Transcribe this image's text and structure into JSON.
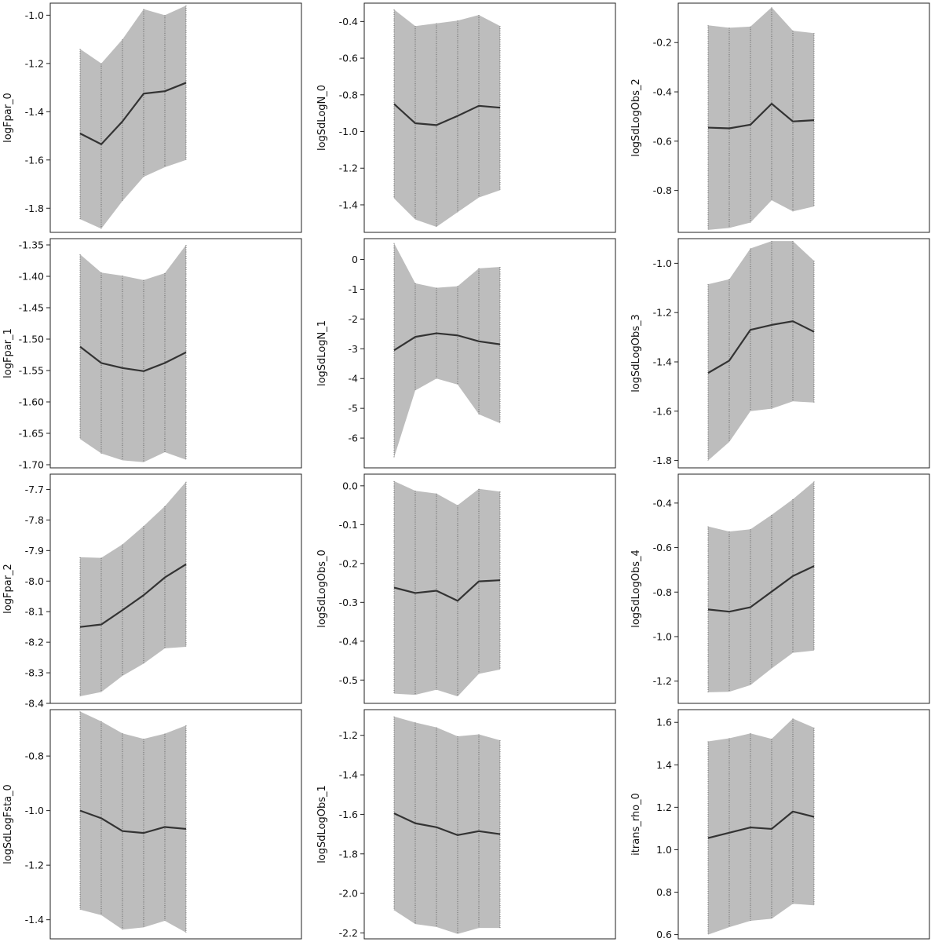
{
  "chart_data": [
    {
      "type": "area",
      "ylabel": "logFpar_0",
      "ylim": [
        -1.9,
        -0.95
      ],
      "yticks": [
        -1.0,
        -1.2,
        -1.4,
        -1.6,
        -1.8
      ],
      "ytick_labels": [
        "-1.0",
        "-1.2",
        "-1.4",
        "-1.6",
        "-1.8"
      ],
      "x": [
        1,
        2,
        3,
        4,
        5,
        6
      ],
      "mean": [
        -1.49,
        -1.535,
        -1.44,
        -1.325,
        -1.315,
        -1.28
      ],
      "lower": [
        -1.845,
        -1.885,
        -1.77,
        -1.67,
        -1.63,
        -1.6
      ],
      "upper": [
        -1.14,
        -1.2,
        -1.1,
        -0.975,
        -1.0,
        -0.96
      ]
    },
    {
      "type": "area",
      "ylabel": "logSdLogN_0",
      "ylim": [
        -1.55,
        -0.3
      ],
      "yticks": [
        -0.4,
        -0.6,
        -0.8,
        -1.0,
        -1.2,
        -1.4
      ],
      "ytick_labels": [
        "-0.4",
        "-0.6",
        "-0.8",
        "-1.0",
        "-1.2",
        "-1.4"
      ],
      "x": [
        1,
        2,
        3,
        4,
        5,
        6
      ],
      "mean": [
        -0.85,
        -0.955,
        -0.965,
        -0.915,
        -0.86,
        -0.87
      ],
      "lower": [
        -1.365,
        -1.48,
        -1.52,
        -1.44,
        -1.36,
        -1.32
      ],
      "upper": [
        -0.335,
        -0.425,
        -0.41,
        -0.395,
        -0.365,
        -0.425
      ]
    },
    {
      "type": "area",
      "ylabel": "logSdLogObs_2",
      "ylim": [
        -0.97,
        -0.04
      ],
      "yticks": [
        -0.2,
        -0.4,
        -0.6,
        -0.8
      ],
      "ytick_labels": [
        "-0.2",
        "-0.4",
        "-0.6",
        "-0.8"
      ],
      "x": [
        1,
        2,
        3,
        4,
        5,
        6
      ],
      "mean": [
        -0.545,
        -0.548,
        -0.533,
        -0.448,
        -0.52,
        -0.515
      ],
      "lower": [
        -0.96,
        -0.952,
        -0.93,
        -0.84,
        -0.885,
        -0.865
      ],
      "upper": [
        -0.13,
        -0.14,
        -0.135,
        -0.057,
        -0.152,
        -0.162
      ]
    },
    {
      "type": "area",
      "ylabel": "logFpar_1",
      "ylim": [
        -1.705,
        -1.34
      ],
      "yticks": [
        -1.35,
        -1.4,
        -1.45,
        -1.5,
        -1.55,
        -1.6,
        -1.65,
        -1.7
      ],
      "ytick_labels": [
        "-1.35",
        "-1.40",
        "-1.45",
        "-1.50",
        "-1.55",
        "-1.60",
        "-1.65",
        "-1.70"
      ],
      "x": [
        1,
        2,
        3,
        4,
        5,
        6
      ],
      "mean": [
        -1.512,
        -1.538,
        -1.546,
        -1.551,
        -1.538,
        -1.521
      ],
      "lower": [
        -1.659,
        -1.682,
        -1.693,
        -1.696,
        -1.68,
        -1.692
      ],
      "upper": [
        -1.365,
        -1.394,
        -1.399,
        -1.406,
        -1.395,
        -1.35
      ]
    },
    {
      "type": "area",
      "ylabel": "logSdLogN_1",
      "ylim": [
        -7.0,
        0.7
      ],
      "yticks": [
        0,
        -1,
        -2,
        -3,
        -4,
        -5,
        -6
      ],
      "ytick_labels": [
        "0",
        "-1",
        "-2",
        "-3",
        "-4",
        "-5",
        "-6"
      ],
      "x": [
        1,
        2,
        3,
        4,
        5,
        6
      ],
      "mean": [
        -3.05,
        -2.6,
        -2.48,
        -2.55,
        -2.75,
        -2.85
      ],
      "lower": [
        -6.65,
        -4.4,
        -4.0,
        -4.2,
        -5.2,
        -5.5
      ],
      "upper": [
        0.55,
        -0.8,
        -0.95,
        -0.9,
        -0.3,
        -0.25
      ]
    },
    {
      "type": "area",
      "ylabel": "logSdLogObs_3",
      "ylim": [
        -1.83,
        -0.9
      ],
      "yticks": [
        -1.0,
        -1.2,
        -1.4,
        -1.6,
        -1.8
      ],
      "ytick_labels": [
        "-1.0",
        "-1.2",
        "-1.4",
        "-1.6",
        "-1.8"
      ],
      "x": [
        1,
        2,
        3,
        4,
        5,
        6
      ],
      "mean": [
        -1.445,
        -1.395,
        -1.27,
        -1.25,
        -1.235,
        -1.278
      ],
      "lower": [
        -1.8,
        -1.725,
        -1.6,
        -1.59,
        -1.56,
        -1.565
      ],
      "upper": [
        -1.085,
        -1.065,
        -0.94,
        -0.91,
        -0.91,
        -0.99
      ]
    },
    {
      "type": "area",
      "ylabel": "logFpar_2",
      "ylim": [
        -8.4,
        -7.65
      ],
      "yticks": [
        -7.7,
        -7.8,
        -7.9,
        -8.0,
        -8.1,
        -8.2,
        -8.3,
        -8.4
      ],
      "ytick_labels": [
        "-7.7",
        "-7.8",
        "-7.9",
        "-8.0",
        "-8.1",
        "-8.2",
        "-8.3",
        "-8.4"
      ],
      "x": [
        1,
        2,
        3,
        4,
        5,
        6
      ],
      "mean": [
        -8.15,
        -8.142,
        -8.095,
        -8.046,
        -7.988,
        -7.945
      ],
      "lower": [
        -8.377,
        -8.363,
        -8.31,
        -8.27,
        -8.22,
        -8.215
      ],
      "upper": [
        -7.922,
        -7.924,
        -7.88,
        -7.82,
        -7.755,
        -7.675
      ]
    },
    {
      "type": "area",
      "ylabel": "logSdLogObs_0",
      "ylim": [
        -0.56,
        0.03
      ],
      "yticks": [
        0.0,
        -0.1,
        -0.2,
        -0.3,
        -0.4,
        -0.5
      ],
      "ytick_labels": [
        "0.0",
        "-0.1",
        "-0.2",
        "-0.3",
        "-0.4",
        "-0.5"
      ],
      "x": [
        1,
        2,
        3,
        4,
        5,
        6
      ],
      "mean": [
        -0.262,
        -0.276,
        -0.27,
        -0.296,
        -0.246,
        -0.243
      ],
      "lower": [
        -0.535,
        -0.538,
        -0.525,
        -0.542,
        -0.484,
        -0.473
      ],
      "upper": [
        0.012,
        -0.013,
        -0.02,
        -0.05,
        -0.008,
        -0.015
      ]
    },
    {
      "type": "area",
      "ylabel": "logSdLogObs_4",
      "ylim": [
        -1.3,
        -0.27
      ],
      "yticks": [
        -0.4,
        -0.6,
        -0.8,
        -1.0,
        -1.2
      ],
      "ytick_labels": [
        "-0.4",
        "-0.6",
        "-0.8",
        "-1.0",
        "-1.2"
      ],
      "x": [
        1,
        2,
        3,
        4,
        5,
        6
      ],
      "mean": [
        -0.878,
        -0.888,
        -0.868,
        -0.798,
        -0.728,
        -0.683
      ],
      "lower": [
        -1.25,
        -1.248,
        -1.218,
        -1.143,
        -1.073,
        -1.063
      ],
      "upper": [
        -0.505,
        -0.528,
        -0.518,
        -0.453,
        -0.383,
        -0.303
      ]
    },
    {
      "type": "area",
      "ylabel": "logSdLogFsta_0",
      "ylim": [
        -1.47,
        -0.63
      ],
      "yticks": [
        -0.8,
        -1.0,
        -1.2,
        -1.4
      ],
      "ytick_labels": [
        "-0.8",
        "-1.0",
        "-1.2",
        "-1.4"
      ],
      "x": [
        1,
        2,
        3,
        4,
        5,
        6
      ],
      "mean": [
        -1.0,
        -1.028,
        -1.075,
        -1.082,
        -1.06,
        -1.067
      ],
      "lower": [
        -1.363,
        -1.383,
        -1.436,
        -1.428,
        -1.404,
        -1.447
      ],
      "upper": [
        -0.637,
        -0.673,
        -0.717,
        -0.737,
        -0.718,
        -0.688
      ]
    },
    {
      "type": "area",
      "ylabel": "logSdLogObs_1",
      "ylim": [
        -2.23,
        -1.07
      ],
      "yticks": [
        -1.2,
        -1.4,
        -1.6,
        -1.8,
        -2.0,
        -2.2
      ],
      "ytick_labels": [
        "-1.2",
        "-1.4",
        "-1.6",
        "-1.8",
        "-2.0",
        "-2.2"
      ],
      "x": [
        1,
        2,
        3,
        4,
        5,
        6
      ],
      "mean": [
        -1.595,
        -1.645,
        -1.665,
        -1.705,
        -1.685,
        -1.7
      ],
      "lower": [
        -2.085,
        -2.155,
        -2.17,
        -2.205,
        -2.175,
        -2.175
      ],
      "upper": [
        -1.105,
        -1.135,
        -1.16,
        -1.205,
        -1.195,
        -1.225
      ]
    },
    {
      "type": "area",
      "ylabel": "itrans_rho_0",
      "ylim": [
        0.58,
        1.66
      ],
      "yticks": [
        1.6,
        1.4,
        1.2,
        1.0,
        0.8,
        0.6
      ],
      "ytick_labels": [
        "1.6",
        "1.4",
        "1.2",
        "1.0",
        "0.8",
        "0.6"
      ],
      "x": [
        1,
        2,
        3,
        4,
        5,
        6
      ],
      "mean": [
        1.055,
        1.08,
        1.105,
        1.098,
        1.18,
        1.155
      ],
      "lower": [
        0.6,
        0.635,
        0.665,
        0.675,
        0.745,
        0.738
      ],
      "upper": [
        1.51,
        1.525,
        1.548,
        1.522,
        1.618,
        1.575
      ]
    }
  ]
}
